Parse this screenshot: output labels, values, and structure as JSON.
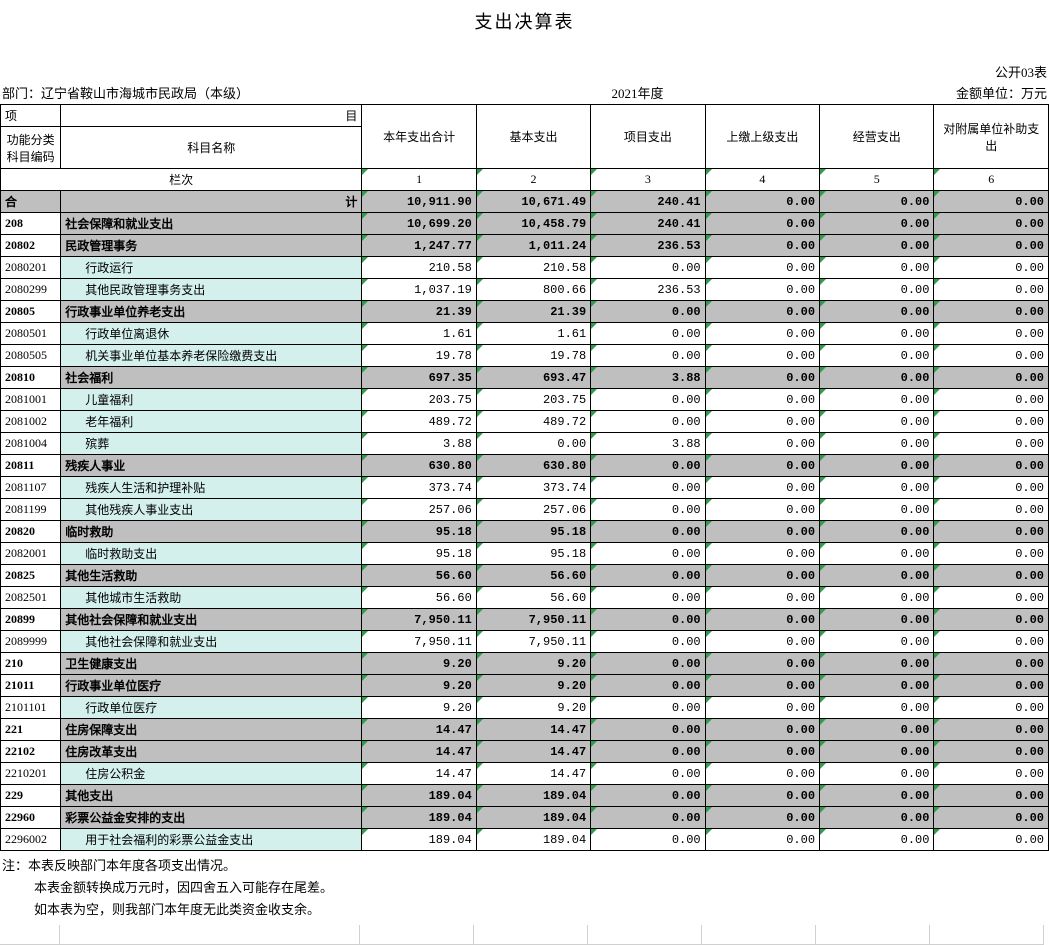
{
  "title": "支出决算表",
  "form_code": "公开03表",
  "dept_label": "部门：辽宁省鞍山市海城市民政局（本级）",
  "year": "2021年度",
  "unit": "金额单位：万元",
  "header": {
    "proj": "项",
    "mu": "目",
    "func_code": "功能分类\n科目编码",
    "subj_name": "科目名称",
    "cols": [
      "本年支出合计",
      "基本支出",
      "项目支出",
      "上缴上级支出",
      "经营支出",
      "对附属单位补助支出"
    ],
    "lanci": "栏次",
    "col_nums": [
      "1",
      "2",
      "3",
      "4",
      "5",
      "6"
    ]
  },
  "total_label": "合",
  "total_label2": "计",
  "total_vals": [
    "10,911.90",
    "10,671.49",
    "240.41",
    "0.00",
    "0.00",
    "0.00"
  ],
  "rows": [
    {
      "code": "208",
      "name": "社会保障和就业支出",
      "v": [
        "10,699.20",
        "10,458.79",
        "240.41",
        "0.00",
        "0.00",
        "0.00"
      ],
      "style": "grey",
      "bold": true
    },
    {
      "code": "20802",
      "name": "民政管理事务",
      "v": [
        "1,247.77",
        "1,011.24",
        "236.53",
        "0.00",
        "0.00",
        "0.00"
      ],
      "style": "grey",
      "bold": true
    },
    {
      "code": "2080201",
      "name": "行政运行",
      "v": [
        "210.58",
        "210.58",
        "0.00",
        "0.00",
        "0.00",
        "0.00"
      ],
      "style": "cyan",
      "indent": true
    },
    {
      "code": "2080299",
      "name": "其他民政管理事务支出",
      "v": [
        "1,037.19",
        "800.66",
        "236.53",
        "0.00",
        "0.00",
        "0.00"
      ],
      "style": "cyan",
      "indent": true
    },
    {
      "code": "20805",
      "name": "行政事业单位养老支出",
      "v": [
        "21.39",
        "21.39",
        "0.00",
        "0.00",
        "0.00",
        "0.00"
      ],
      "style": "grey",
      "bold": true
    },
    {
      "code": "2080501",
      "name": "行政单位离退休",
      "v": [
        "1.61",
        "1.61",
        "0.00",
        "0.00",
        "0.00",
        "0.00"
      ],
      "style": "cyan",
      "indent": true
    },
    {
      "code": "2080505",
      "name": "机关事业单位基本养老保险缴费支出",
      "v": [
        "19.78",
        "19.78",
        "0.00",
        "0.00",
        "0.00",
        "0.00"
      ],
      "style": "cyan",
      "indent": true
    },
    {
      "code": "20810",
      "name": "社会福利",
      "v": [
        "697.35",
        "693.47",
        "3.88",
        "0.00",
        "0.00",
        "0.00"
      ],
      "style": "grey",
      "bold": true
    },
    {
      "code": "2081001",
      "name": "儿童福利",
      "v": [
        "203.75",
        "203.75",
        "0.00",
        "0.00",
        "0.00",
        "0.00"
      ],
      "style": "cyan",
      "indent": true
    },
    {
      "code": "2081002",
      "name": "老年福利",
      "v": [
        "489.72",
        "489.72",
        "0.00",
        "0.00",
        "0.00",
        "0.00"
      ],
      "style": "cyan",
      "indent": true
    },
    {
      "code": "2081004",
      "name": "殡葬",
      "v": [
        "3.88",
        "0.00",
        "3.88",
        "0.00",
        "0.00",
        "0.00"
      ],
      "style": "cyan",
      "indent": true
    },
    {
      "code": "20811",
      "name": "残疾人事业",
      "v": [
        "630.80",
        "630.80",
        "0.00",
        "0.00",
        "0.00",
        "0.00"
      ],
      "style": "grey",
      "bold": true
    },
    {
      "code": "2081107",
      "name": "残疾人生活和护理补贴",
      "v": [
        "373.74",
        "373.74",
        "0.00",
        "0.00",
        "0.00",
        "0.00"
      ],
      "style": "cyan",
      "indent": true
    },
    {
      "code": "2081199",
      "name": "其他残疾人事业支出",
      "v": [
        "257.06",
        "257.06",
        "0.00",
        "0.00",
        "0.00",
        "0.00"
      ],
      "style": "cyan",
      "indent": true
    },
    {
      "code": "20820",
      "name": "临时救助",
      "v": [
        "95.18",
        "95.18",
        "0.00",
        "0.00",
        "0.00",
        "0.00"
      ],
      "style": "grey",
      "bold": true
    },
    {
      "code": "2082001",
      "name": "临时救助支出",
      "v": [
        "95.18",
        "95.18",
        "0.00",
        "0.00",
        "0.00",
        "0.00"
      ],
      "style": "cyan",
      "indent": true
    },
    {
      "code": "20825",
      "name": "其他生活救助",
      "v": [
        "56.60",
        "56.60",
        "0.00",
        "0.00",
        "0.00",
        "0.00"
      ],
      "style": "grey",
      "bold": true
    },
    {
      "code": "2082501",
      "name": "其他城市生活救助",
      "v": [
        "56.60",
        "56.60",
        "0.00",
        "0.00",
        "0.00",
        "0.00"
      ],
      "style": "cyan",
      "indent": true
    },
    {
      "code": "20899",
      "name": "其他社会保障和就业支出",
      "v": [
        "7,950.11",
        "7,950.11",
        "0.00",
        "0.00",
        "0.00",
        "0.00"
      ],
      "style": "grey",
      "bold": true
    },
    {
      "code": "2089999",
      "name": "其他社会保障和就业支出",
      "v": [
        "7,950.11",
        "7,950.11",
        "0.00",
        "0.00",
        "0.00",
        "0.00"
      ],
      "style": "cyan",
      "indent": true
    },
    {
      "code": "210",
      "name": "卫生健康支出",
      "v": [
        "9.20",
        "9.20",
        "0.00",
        "0.00",
        "0.00",
        "0.00"
      ],
      "style": "grey",
      "bold": true
    },
    {
      "code": "21011",
      "name": "行政事业单位医疗",
      "v": [
        "9.20",
        "9.20",
        "0.00",
        "0.00",
        "0.00",
        "0.00"
      ],
      "style": "grey",
      "bold": true
    },
    {
      "code": "2101101",
      "name": "行政单位医疗",
      "v": [
        "9.20",
        "9.20",
        "0.00",
        "0.00",
        "0.00",
        "0.00"
      ],
      "style": "cyan",
      "indent": true
    },
    {
      "code": "221",
      "name": "住房保障支出",
      "v": [
        "14.47",
        "14.47",
        "0.00",
        "0.00",
        "0.00",
        "0.00"
      ],
      "style": "grey",
      "bold": true
    },
    {
      "code": "22102",
      "name": "住房改革支出",
      "v": [
        "14.47",
        "14.47",
        "0.00",
        "0.00",
        "0.00",
        "0.00"
      ],
      "style": "grey",
      "bold": true
    },
    {
      "code": "2210201",
      "name": "住房公积金",
      "v": [
        "14.47",
        "14.47",
        "0.00",
        "0.00",
        "0.00",
        "0.00"
      ],
      "style": "cyan",
      "indent": true
    },
    {
      "code": "229",
      "name": "其他支出",
      "v": [
        "189.04",
        "189.04",
        "0.00",
        "0.00",
        "0.00",
        "0.00"
      ],
      "style": "grey",
      "bold": true
    },
    {
      "code": "22960",
      "name": "彩票公益金安排的支出",
      "v": [
        "189.04",
        "189.04",
        "0.00",
        "0.00",
        "0.00",
        "0.00"
      ],
      "style": "grey",
      "bold": true
    },
    {
      "code": "2296002",
      "name": "用于社会福利的彩票公益金支出",
      "v": [
        "189.04",
        "189.04",
        "0.00",
        "0.00",
        "0.00",
        "0.00"
      ],
      "style": "cyan",
      "indent": true
    }
  ],
  "notes": [
    "注：本表反映部门本年度各项支出情况。",
    "本表金额转换成万元时，因四舍五入可能存在尾差。",
    "如本表为空，则我部门本年度无此类资金收支余。"
  ]
}
